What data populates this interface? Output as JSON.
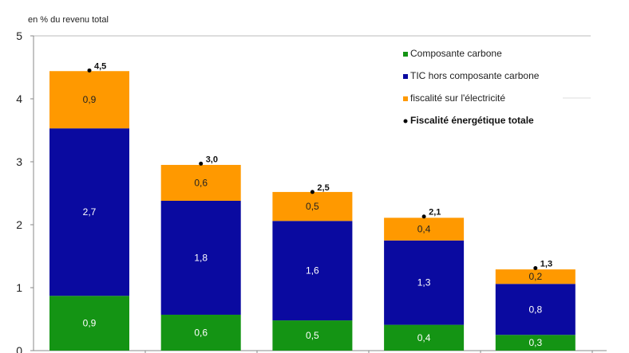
{
  "chart_data": {
    "type": "bar",
    "stacked": true,
    "ylabel": "en % du revenu total",
    "ylim": [
      0,
      5
    ],
    "yticks": [
      "0",
      "1",
      "2",
      "3",
      "4",
      "5"
    ],
    "categories": [
      "",
      "",
      "",
      "",
      ""
    ],
    "series": [
      {
        "name": "Composante carbone",
        "color": "#149414",
        "values": [
          0.87,
          0.57,
          0.48,
          0.41,
          0.25
        ],
        "labels": [
          "0,9",
          "0,6",
          "0,5",
          "0,4",
          "0,3"
        ]
      },
      {
        "name": "TIC hors composante carbone",
        "color": "#0a0aa0",
        "values": [
          2.66,
          1.81,
          1.58,
          1.34,
          0.81
        ],
        "labels": [
          "2,7",
          "1,8",
          "1,6",
          "1,3",
          "0,8"
        ]
      },
      {
        "name": "fiscalité sur l'électricité",
        "color": "#ff9900",
        "values": [
          0.91,
          0.57,
          0.46,
          0.36,
          0.23
        ],
        "labels": [
          "0,9",
          "0,6",
          "0,5",
          "0,4",
          "0,2"
        ]
      }
    ],
    "total": {
      "name": "Fiscalité énergétique totale",
      "color": "#000000",
      "values": [
        4.45,
        2.97,
        2.52,
        2.13,
        1.31
      ],
      "labels": [
        "4,5",
        "3,0",
        "2,5",
        "2,1",
        "1,3"
      ]
    },
    "legend": "top-right"
  }
}
